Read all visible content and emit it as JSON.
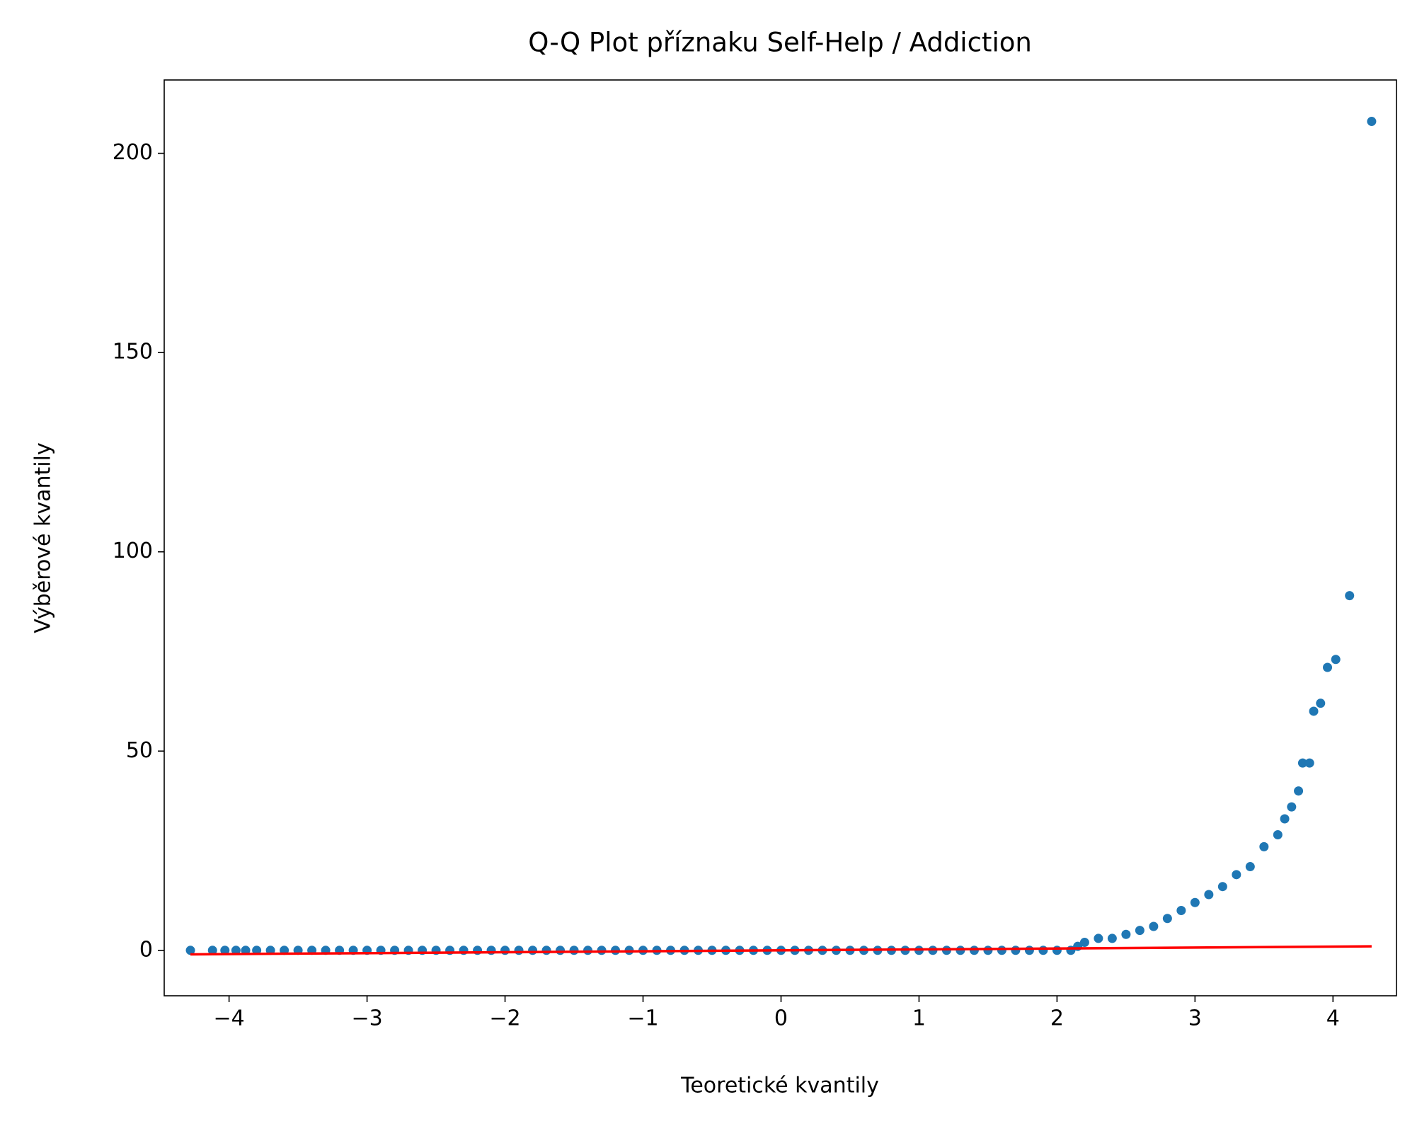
{
  "chart_data": {
    "type": "scatter",
    "title": "Q-Q Plot příznaku Self-Help / Addiction",
    "xlabel": "Teoretické kvantily",
    "ylabel": "Výběrové kvantily",
    "xlim": [
      -4.47,
      4.46
    ],
    "ylim": [
      -11.4,
      218.4
    ],
    "xticks": [
      {
        "value": -4,
        "label": "−4"
      },
      {
        "value": -3,
        "label": "−3"
      },
      {
        "value": -2,
        "label": "−2"
      },
      {
        "value": -1,
        "label": "−1"
      },
      0,
      1,
      2,
      3,
      4
    ],
    "yticks": [
      0,
      50,
      100,
      150,
      200
    ],
    "grid": false,
    "series": [
      {
        "color": "#1f77b4",
        "x": [
          -4.28,
          -4.12,
          -4.03,
          -3.95,
          -3.88,
          -3.8,
          -3.7,
          -3.6,
          -3.5,
          -3.4,
          -3.3,
          -3.2,
          -3.1,
          -3.0,
          -2.9,
          -2.8,
          -2.7,
          -2.6,
          -2.5,
          -2.4,
          -2.3,
          -2.2,
          -2.1,
          -2.0,
          -1.9,
          -1.8,
          -1.7,
          -1.6,
          -1.5,
          -1.4,
          -1.3,
          -1.2,
          -1.1,
          -1.0,
          -0.9,
          -0.8,
          -0.7,
          -0.6,
          -0.5,
          -0.4,
          -0.3,
          -0.2,
          -0.1,
          0,
          0.1,
          0.2,
          0.3,
          0.4,
          0.5,
          0.6,
          0.7,
          0.8,
          0.9,
          1.0,
          1.1,
          1.2,
          1.3,
          1.4,
          1.5,
          1.6,
          1.7,
          1.8,
          1.9,
          2.0,
          2.1,
          2.15,
          2.2,
          2.3,
          2.4,
          2.5,
          2.6,
          2.7,
          2.8,
          2.9,
          3.0,
          3.1,
          3.2,
          3.3,
          3.4,
          3.5,
          3.6,
          3.65,
          3.7,
          3.75,
          3.78,
          3.83,
          3.86,
          3.91,
          3.96,
          4.02,
          4.12,
          4.28
        ],
        "values": [
          0,
          0,
          0,
          0,
          0,
          0,
          0,
          0,
          0,
          0,
          0,
          0,
          0,
          0,
          0,
          0,
          0,
          0,
          0,
          0,
          0,
          0,
          0,
          0,
          0,
          0,
          0,
          0,
          0,
          0,
          0,
          0,
          0,
          0,
          0,
          0,
          0,
          0,
          0,
          0,
          0,
          0,
          0,
          0,
          0,
          0,
          0,
          0,
          0,
          0,
          0,
          0,
          0,
          0,
          0,
          0,
          0,
          0,
          0,
          0,
          0,
          0,
          0,
          0,
          0,
          1,
          2,
          3,
          3,
          4,
          5,
          6,
          8,
          10,
          12,
          14,
          16,
          19,
          21,
          26,
          29,
          33,
          36,
          40,
          47,
          47,
          60,
          62,
          71,
          73,
          89,
          208
        ]
      },
      {
        "type": "line",
        "color": "#ff0000",
        "x": [
          -4.28,
          4.28
        ],
        "values": [
          -1,
          1
        ]
      }
    ]
  }
}
